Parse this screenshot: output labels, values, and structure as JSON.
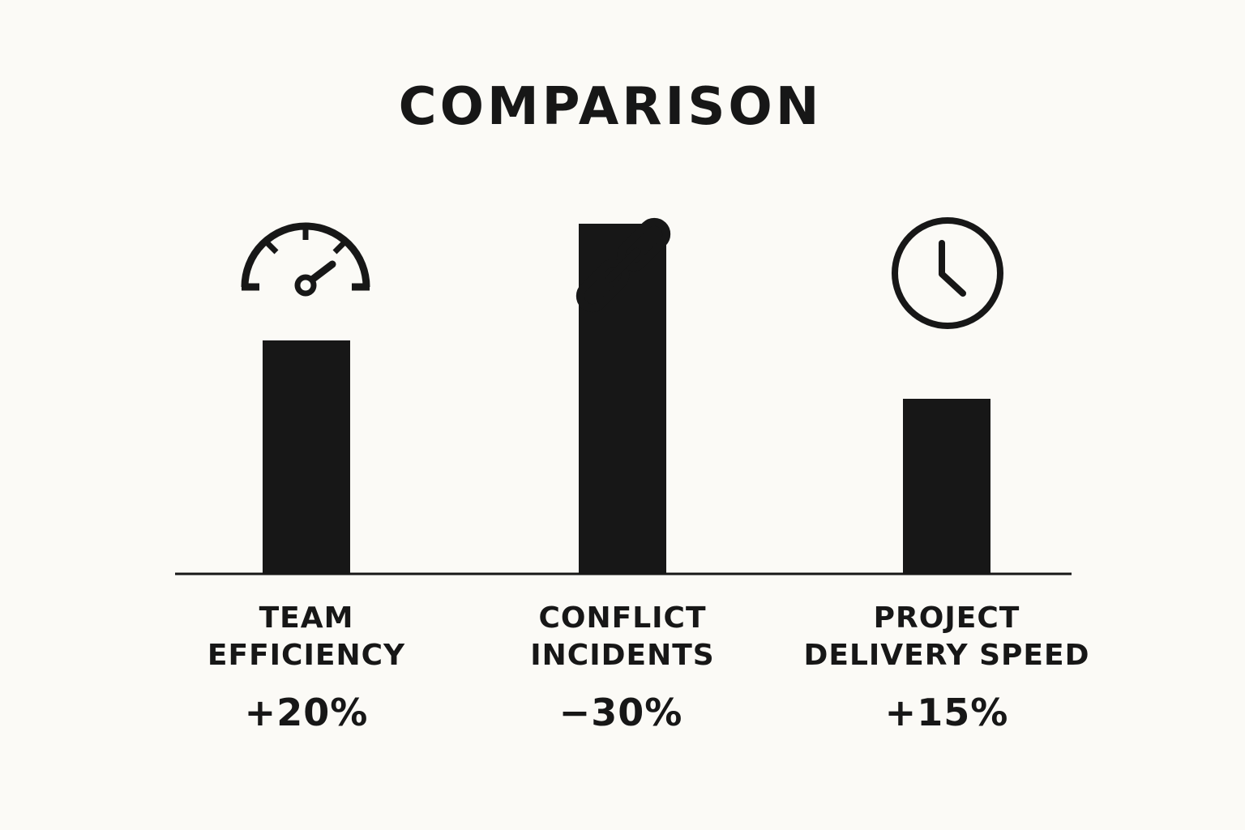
{
  "colors": {
    "background": "#fbfaf6",
    "ink": "#171717"
  },
  "chart_data": {
    "type": "bar",
    "title": "COMPARISON",
    "categories": [
      "TEAM EFFICIENCY",
      "CONFLICT INCIDENTS",
      "PROJECT DELIVERY SPEED"
    ],
    "category_lines": [
      [
        "TEAM",
        "EFFICIENCY"
      ],
      [
        "CONFLICT",
        "INCIDENTS"
      ],
      [
        "PROJECT",
        "DELIVERY SPEED"
      ]
    ],
    "values": [
      20,
      -30,
      15
    ],
    "value_labels": [
      "+20%",
      "−30%",
      "+15%"
    ],
    "icons": [
      "speedometer-icon",
      "link-icon",
      "clock-icon"
    ],
    "grid": false,
    "legend": "none"
  }
}
